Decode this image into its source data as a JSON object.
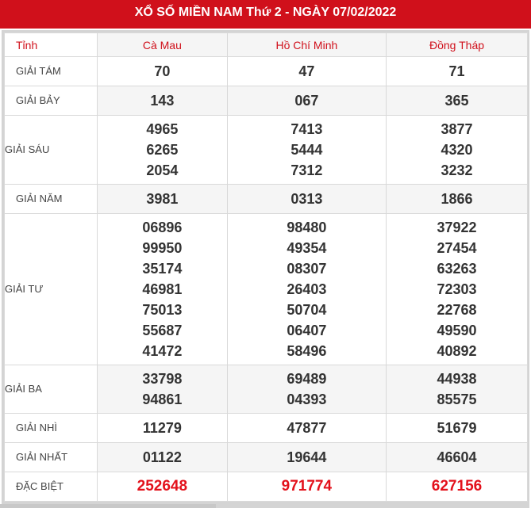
{
  "title": "XỔ SỐ MIỀN NAM Thứ 2 - NGÀY 07/02/2022",
  "header": {
    "label": "Tỉnh",
    "provinces": [
      "Cà Mau",
      "Hồ Chí Minh",
      "Đồng Tháp"
    ]
  },
  "rows": [
    {
      "label": "GIẢI TÁM",
      "values": [
        [
          "70"
        ],
        [
          "47"
        ],
        [
          "71"
        ]
      ]
    },
    {
      "label": "GIẢI BẢY",
      "values": [
        [
          "143"
        ],
        [
          "067"
        ],
        [
          "365"
        ]
      ]
    },
    {
      "label": "GIẢI SÁU",
      "values": [
        [
          "4965",
          "6265",
          "2054"
        ],
        [
          "7413",
          "5444",
          "7312"
        ],
        [
          "3877",
          "4320",
          "3232"
        ]
      ]
    },
    {
      "label": "GIẢI NĂM",
      "values": [
        [
          "3981"
        ],
        [
          "0313"
        ],
        [
          "1866"
        ]
      ]
    },
    {
      "label": "GIẢI TƯ",
      "values": [
        [
          "06896",
          "99950",
          "35174",
          "46981",
          "75013",
          "55687",
          "41472"
        ],
        [
          "98480",
          "49354",
          "08307",
          "26403",
          "50704",
          "06407",
          "58496"
        ],
        [
          "37922",
          "27454",
          "63263",
          "72303",
          "22768",
          "49590",
          "40892"
        ]
      ]
    },
    {
      "label": "GIẢI BA",
      "values": [
        [
          "33798",
          "94861"
        ],
        [
          "69489",
          "04393"
        ],
        [
          "44938",
          "85575"
        ]
      ]
    },
    {
      "label": "GIẢI NHÌ",
      "values": [
        [
          "11279"
        ],
        [
          "47877"
        ],
        [
          "51679"
        ]
      ]
    },
    {
      "label": "GIẢI NHẤT",
      "values": [
        [
          "01122"
        ],
        [
          "19644"
        ],
        [
          "46604"
        ]
      ]
    },
    {
      "label": "ĐẶC BIỆT",
      "values": [
        [
          "252648"
        ],
        [
          "971774"
        ],
        [
          "627156"
        ]
      ],
      "highlight": true
    }
  ],
  "colors": {
    "brand": "#d0101b",
    "special": "#e3111b"
  }
}
